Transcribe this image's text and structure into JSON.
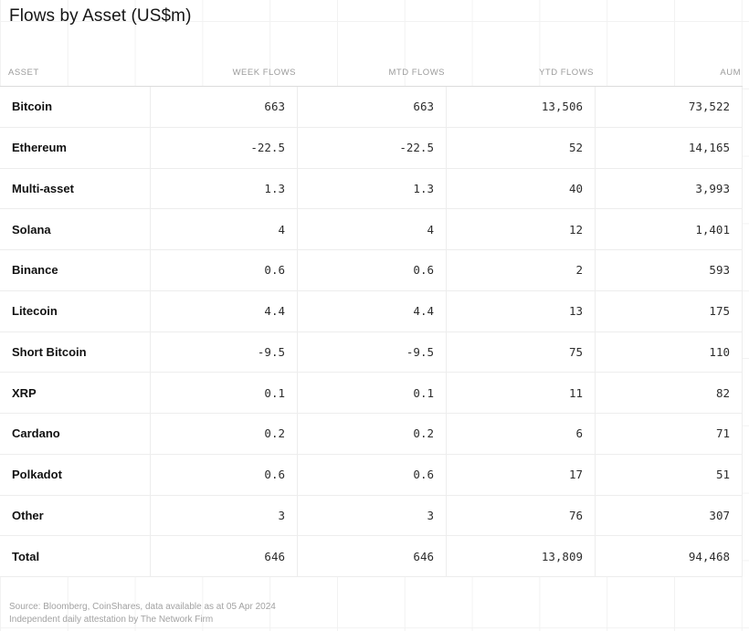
{
  "title": "Flows by Asset (US$m)",
  "chart_data": {
    "type": "table",
    "title": "Flows by Asset (US$m)",
    "columns": [
      "ASSET",
      "WEEK FLOWS",
      "MTD FLOWS",
      "YTD FLOWS",
      "AUM"
    ],
    "rows": [
      [
        "Bitcoin",
        "663",
        "663",
        "13,506",
        "73,522"
      ],
      [
        "Ethereum",
        "-22.5",
        "-22.5",
        "52",
        "14,165"
      ],
      [
        "Multi-asset",
        "1.3",
        "1.3",
        "40",
        "3,993"
      ],
      [
        "Solana",
        "4",
        "4",
        "12",
        "1,401"
      ],
      [
        "Binance",
        "0.6",
        "0.6",
        "2",
        "593"
      ],
      [
        "Litecoin",
        "4.4",
        "4.4",
        "13",
        "175"
      ],
      [
        "Short Bitcoin",
        "-9.5",
        "-9.5",
        "75",
        "110"
      ],
      [
        "XRP",
        "0.1",
        "0.1",
        "11",
        "82"
      ],
      [
        "Cardano",
        "0.2",
        "0.2",
        "6",
        "71"
      ],
      [
        "Polkadot",
        "0.6",
        "0.6",
        "17",
        "51"
      ],
      [
        "Other",
        "3",
        "3",
        "76",
        "307"
      ],
      [
        "Total",
        "646",
        "646",
        "13,809",
        "94,468"
      ]
    ]
  },
  "footer": {
    "line1": "Source: Bloomberg, CoinShares, data available as at 05 Apr 2024",
    "line2": "Independent daily attestation by The Network Firm"
  },
  "colors": {
    "background": "#ffffff",
    "grid_line": "#f2f2f2",
    "header_text": "#9b9b9b",
    "header_border": "#dcdcdc",
    "row_border": "#ededed",
    "asset_text": "#121212",
    "value_text": "#2d2d2d",
    "footer_text": "#a2a2a2"
  }
}
